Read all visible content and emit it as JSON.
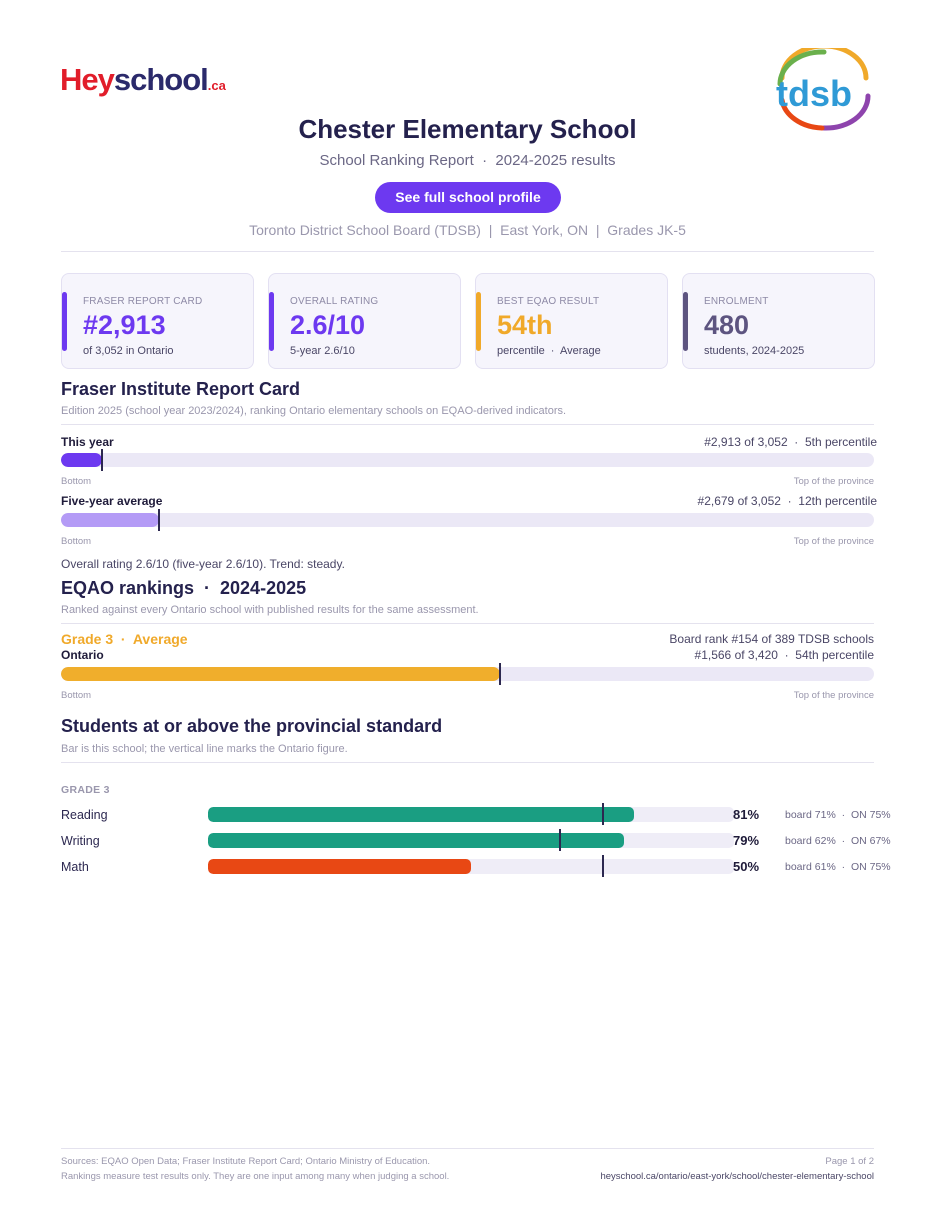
{
  "header": {
    "brand_logo_text": "Heyschool.ca",
    "brand_logo_parts": {
      "hey": "He",
      "y": "y",
      "school": "school",
      "ca": ".ca"
    },
    "board_logo_text": "tdsb",
    "title": "Chester Elementary School",
    "subtitle": "School Ranking Report  ·  2024-2025 results",
    "cta_label": "See full school profile",
    "meta": "Toronto District School Board (TDSB)  |  East York, ON  |  Grades JK-5"
  },
  "cards": [
    {
      "label": "FRASER REPORT CARD",
      "value": "#2,913",
      "sub": "of 3,052 in Ontario",
      "accent": "#6d39f0"
    },
    {
      "label": "OVERALL RATING",
      "value": "2.6/10",
      "sub": "5-year 2.6/10",
      "accent": "#6d39f0"
    },
    {
      "label": "BEST EQAO RESULT",
      "value": "54th",
      "sub": "percentile  ·  Average",
      "accent": "#f0a92a"
    },
    {
      "label": "ENROLMENT",
      "value": "480",
      "sub": "students, 2024-2025",
      "accent": "#5d5480"
    }
  ],
  "fraser": {
    "title": "Fraser Institute Report Card",
    "note": "Edition 2025 (school year 2023/2024), ranking Ontario elementary schools on EQAO-derived indicators.",
    "this_year": {
      "label": "This year",
      "right": "#2,913 of 3,052  ·  5th percentile",
      "percentile": 5
    },
    "five_year": {
      "label": "Five-year average",
      "right": "#2,679 of 3,052  ·  12th percentile",
      "percentile": 12
    },
    "bottom": "Bottom",
    "top": "Top of the province",
    "summary": "Overall rating 2.6/10 (five-year 2.6/10). Trend: steady."
  },
  "eqao": {
    "title": "EQAO rankings  ·  2024-2025",
    "note": "Ranked against every Ontario school with published results for the same assessment.",
    "grade_label": "Grade 3  ·  Average",
    "scope": "Ontario",
    "board_rank": "Board rank #154 of 389 TDSB schools",
    "provincial": "#1,566 of 3,420  ·  54th percentile",
    "percentile": 54,
    "bottom": "Bottom",
    "top": "Top of the province"
  },
  "standard": {
    "title": "Students at or above the provincial standard",
    "note": "Bar is this school; the vertical line marks the Ontario figure.",
    "grade": "GRADE 3",
    "rows": [
      {
        "subject": "Reading",
        "pct": "81%",
        "value": 81,
        "ontario": 75,
        "cmp": "board 71%  ·  ON 75%",
        "color": "#1a9e82"
      },
      {
        "subject": "Writing",
        "pct": "79%",
        "value": 79,
        "ontario": 67,
        "cmp": "board 62%  ·  ON 67%",
        "color": "#1a9e82"
      },
      {
        "subject": "Math",
        "pct": "50%",
        "value": 50,
        "ontario": 75,
        "cmp": "board 61%  ·  ON 75%",
        "color": "#e84814"
      }
    ]
  },
  "footer": {
    "sources": "Sources: EQAO Open Data; Fraser Institute Report Card; Ontario Ministry of Education.",
    "disclaimer": "Rankings measure test results only. They are one input among many when judging a school.",
    "page": "Page 1 of 2",
    "url": "heyschool.ca/ontario/east-york/school/chester-elementary-school"
  }
}
